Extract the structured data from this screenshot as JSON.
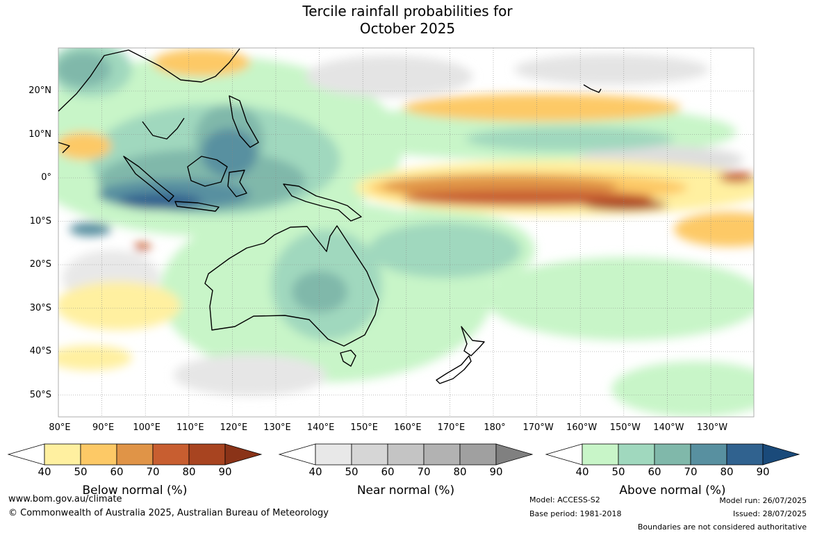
{
  "title": {
    "line1": "Tercile rainfall probabilities for",
    "line2": "October 2025"
  },
  "map": {
    "lat_labels": [
      "20°N",
      "10°N",
      "0°",
      "10°S",
      "20°S",
      "30°S",
      "40°S",
      "50°S"
    ],
    "lon_labels": [
      "80°E",
      "90°E",
      "100°E",
      "110°E",
      "120°E",
      "130°E",
      "140°E",
      "150°E",
      "160°E",
      "170°E",
      "180°",
      "170°W",
      "160°W",
      "150°W",
      "140°W",
      "130°W"
    ]
  },
  "colorbars": [
    {
      "title": "Below normal (%)",
      "ticks": [
        "40",
        "50",
        "60",
        "70",
        "80",
        "90"
      ],
      "colors": [
        "#fff0a0",
        "#fdc966",
        "#e09447",
        "#c85e30",
        "#a84420",
        "#8a3318"
      ]
    },
    {
      "title": "Near normal (%)",
      "ticks": [
        "40",
        "50",
        "60",
        "70",
        "80",
        "90"
      ],
      "colors": [
        "#e8e8e8",
        "#d6d6d6",
        "#c4c4c4",
        "#b2b2b2",
        "#a0a0a0",
        "#808080"
      ]
    },
    {
      "title": "Above normal (%)",
      "ticks": [
        "40",
        "50",
        "60",
        "70",
        "80",
        "90"
      ],
      "colors": [
        "#c8f5c8",
        "#a0d8be",
        "#80b8aa",
        "#5890a0",
        "#30628f",
        "#1a4a7a"
      ]
    }
  ],
  "footer": {
    "website": "www.bom.gov.au/climate",
    "copyright": "© Commonwealth of Australia 2025, Australian Bureau of Meteorology",
    "model": "Model: ACCESS-S2",
    "base_period": "Base period: 1981-2018",
    "model_run": "Model run: 26/07/2025",
    "issued": "Issued: 28/07/2025",
    "disclaimer": "Boundaries are not considered authoritative"
  }
}
